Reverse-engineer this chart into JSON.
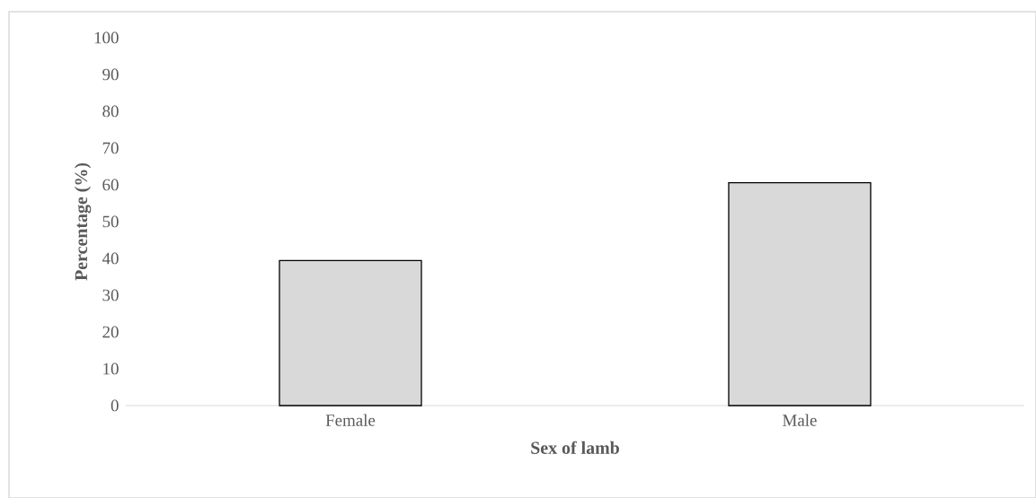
{
  "chart_data": {
    "type": "bar",
    "xlabel": "Sex of  lamb",
    "ylabel": "Percentage (%)",
    "categories": [
      "Female",
      "Male"
    ],
    "values": [
      39.4,
      60.6
    ],
    "color": "#d9d9d9",
    "ylim": [
      0,
      100
    ],
    "yticks": [
      0,
      10,
      20,
      30,
      40,
      50,
      60,
      70,
      80,
      90,
      100
    ]
  }
}
